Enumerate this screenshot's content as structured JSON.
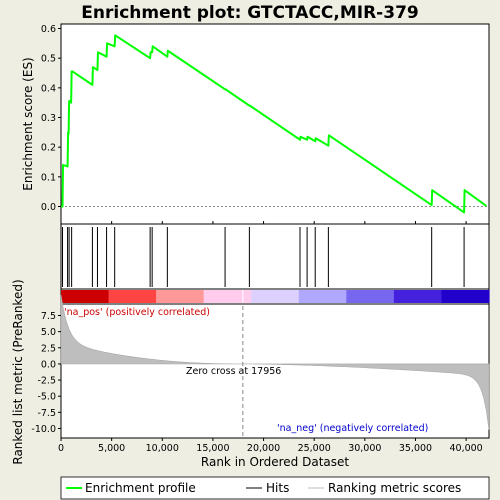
{
  "chart_data": {
    "type": "line",
    "title": "Enrichment plot: GTCTACC,MIR-379",
    "xlabel": "Rank in Ordered Dataset",
    "ylabel_top": "Enrichment score (ES)",
    "ylabel_bottom": "Ranked list metric (PreRanked)",
    "x_range": [
      0,
      42260
    ],
    "x_ticks": [
      0,
      5000,
      10000,
      15000,
      20000,
      25000,
      30000,
      35000,
      40000
    ],
    "x_tick_labels": [
      "0",
      "5,000",
      "10,000",
      "15,000",
      "20,000",
      "25,000",
      "30,000",
      "35,000",
      "40,000"
    ],
    "es_ylim": [
      -0.04,
      0.61
    ],
    "es_ticks": [
      0.0,
      0.1,
      0.2,
      0.3,
      0.4,
      0.5,
      0.6
    ],
    "es_tick_labels": [
      "0.0",
      "0.1",
      "0.2",
      "0.3",
      "0.4",
      "0.5",
      "0.6"
    ],
    "metric_ylim": [
      -10.5,
      8.5
    ],
    "metric_ticks": [
      7.5,
      5.0,
      2.5,
      0.0,
      -2.5,
      -5.0,
      -7.5,
      -10.0
    ],
    "metric_tick_labels": [
      "7.5",
      "5.0",
      "2.5",
      "0.0",
      "-2.5",
      "-5.0",
      "-7.5",
      "-10.0"
    ],
    "series": [
      {
        "name": "Enrichment profile",
        "color": "#00ff00",
        "x": [
          0,
          150,
          200,
          650,
          700,
          750,
          800,
          900,
          1000,
          1050,
          1150,
          3100,
          3150,
          3600,
          3650,
          4500,
          4550,
          5300,
          5350,
          8800,
          8850,
          9000,
          9050,
          10500,
          10550,
          16200,
          16250,
          18600,
          18650,
          23600,
          23650,
          24300,
          24350,
          25100,
          25150,
          26400,
          26450,
          36600,
          36650,
          39800,
          39850,
          42000
        ],
        "y": [
          0.0,
          0.0,
          0.14,
          0.135,
          0.25,
          0.245,
          0.355,
          0.355,
          0.35,
          0.455,
          0.455,
          0.41,
          0.47,
          0.46,
          0.52,
          0.505,
          0.55,
          0.54,
          0.577,
          0.5,
          0.52,
          0.52,
          0.54,
          0.505,
          0.525,
          0.395,
          0.395,
          0.34,
          0.34,
          0.225,
          0.235,
          0.225,
          0.235,
          0.22,
          0.23,
          0.205,
          0.24,
          0.005,
          0.055,
          -0.02,
          0.055,
          0.002
        ]
      }
    ],
    "hits": [
      150,
      650,
      800,
      1050,
      3100,
      3600,
      4500,
      5300,
      8800,
      9000,
      10500,
      16200,
      18600,
      23600,
      24300,
      25100,
      26400,
      36600,
      39800
    ],
    "legend": {
      "entries": [
        "Enrichment profile",
        "Hits",
        "Ranking metric scores"
      ]
    },
    "annotations": {
      "pos_label": "'na_pos' (positively correlated)",
      "neg_label": "'na_neg' (negatively correlated)",
      "zero_cross": "Zero cross at 17956"
    },
    "zero_cross": 17956,
    "colors": {
      "profile": "#00ff00",
      "hits": "#000000",
      "metric_fill": "#bebebe",
      "pos_text": "#cc0000",
      "neg_text": "#0000cc",
      "zero_line": "#888888"
    },
    "heat_stops": [
      "#cc0000",
      "#ff4444",
      "#ff9999",
      "#ffccee",
      "#dcd0ff",
      "#b0a8ff",
      "#7766ee",
      "#4422dd",
      "#2200cc"
    ]
  }
}
